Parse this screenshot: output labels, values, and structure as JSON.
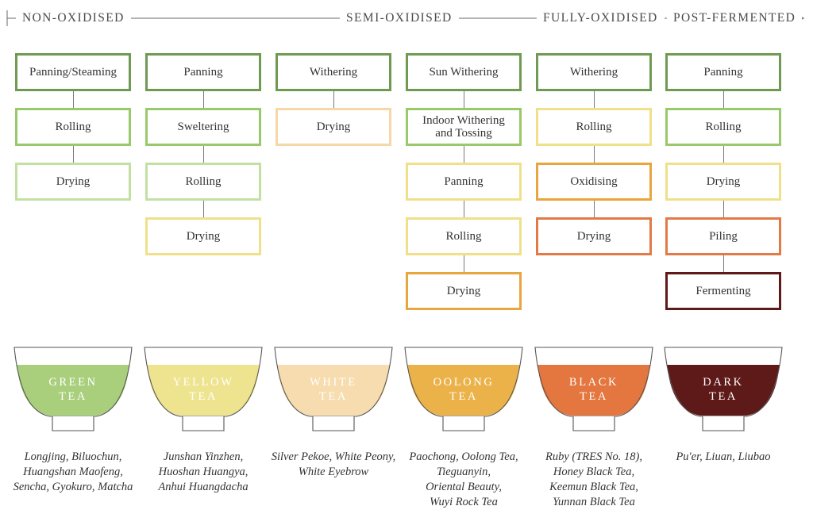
{
  "scale": {
    "labels": [
      "NON-OXIDISED",
      "SEMI-OXIDISED",
      "FULLY-OXIDISED",
      "POST-FERMENTED"
    ],
    "arrow_icon": "arrow-right-icon"
  },
  "teas": [
    {
      "name": "GREEN TEA",
      "name_lines": [
        "GREEN",
        "TEA"
      ],
      "liquid_color": "#a9cf7d",
      "steps": [
        {
          "label": "Panning/Steaming",
          "color": "#6e9a52"
        },
        {
          "label": "Rolling",
          "color": "#98c96a"
        },
        {
          "label": "Drying",
          "color": "#c3e0a3"
        }
      ],
      "examples": [
        "Longjing, Biluochun,",
        "Huangshan Maofeng,",
        "Sencha, Gyokuro, Matcha"
      ]
    },
    {
      "name": "YELLOW TEA",
      "name_lines": [
        "YELLOW",
        "TEA"
      ],
      "liquid_color": "#eee48f",
      "steps": [
        {
          "label": "Panning",
          "color": "#6e9a52"
        },
        {
          "label": "Sweltering",
          "color": "#98c96a"
        },
        {
          "label": "Rolling",
          "color": "#c3e0a3"
        },
        {
          "label": "Drying",
          "color": "#f0e08a"
        }
      ],
      "examples": [
        "Junshan Yinzhen,",
        "Huoshan Huangya,",
        "Anhui Huangdacha"
      ]
    },
    {
      "name": "WHITE TEA",
      "name_lines": [
        "WHITE",
        "TEA"
      ],
      "liquid_color": "#f6dcae",
      "steps": [
        {
          "label": "Withering",
          "color": "#6e9a52"
        },
        {
          "label": "Drying",
          "color": "#f6d7a6"
        }
      ],
      "examples": [
        "Silver Pekoe, White Peony,",
        "White Eyebrow"
      ]
    },
    {
      "name": "OOLONG TEA",
      "name_lines": [
        "OOLONG",
        "TEA"
      ],
      "liquid_color": "#ebb24a",
      "steps": [
        {
          "label": "Sun Withering",
          "color": "#6e9a52"
        },
        {
          "label": "Indoor Withering and Tossing",
          "color": "#98c96a",
          "lines": [
            "Indoor Withering",
            "and Tossing"
          ]
        },
        {
          "label": "Panning",
          "color": "#f0e08a"
        },
        {
          "label": "Rolling",
          "color": "#f0e08a"
        },
        {
          "label": "Drying",
          "color": "#e9a53e"
        }
      ],
      "examples": [
        "Paochong, Oolong Tea,",
        "Tieguanyin,",
        "Oriental Beauty,",
        "Wuyi Rock Tea"
      ]
    },
    {
      "name": "BLACK TEA",
      "name_lines": [
        "BLACK",
        "TEA"
      ],
      "liquid_color": "#e4763f",
      "steps": [
        {
          "label": "Withering",
          "color": "#6e9a52"
        },
        {
          "label": "Rolling",
          "color": "#f0e08a"
        },
        {
          "label": "Oxidising",
          "color": "#e9a53e"
        },
        {
          "label": "Drying",
          "color": "#e17a46"
        }
      ],
      "examples": [
        "Ruby (TRES No. 18),",
        "Honey Black Tea,",
        "Keemun Black Tea,",
        "Yunnan Black Tea"
      ]
    },
    {
      "name": "DARK TEA",
      "name_lines": [
        "DARK",
        "TEA"
      ],
      "liquid_color": "#5d1a18",
      "steps": [
        {
          "label": "Panning",
          "color": "#6e9a52"
        },
        {
          "label": "Rolling",
          "color": "#98c96a"
        },
        {
          "label": "Drying",
          "color": "#f0e08a"
        },
        {
          "label": "Piling",
          "color": "#e17a46"
        },
        {
          "label": "Fermenting",
          "color": "#5d1a18"
        }
      ],
      "examples": [
        "Pu'er, Liuan, Liubao"
      ]
    }
  ]
}
